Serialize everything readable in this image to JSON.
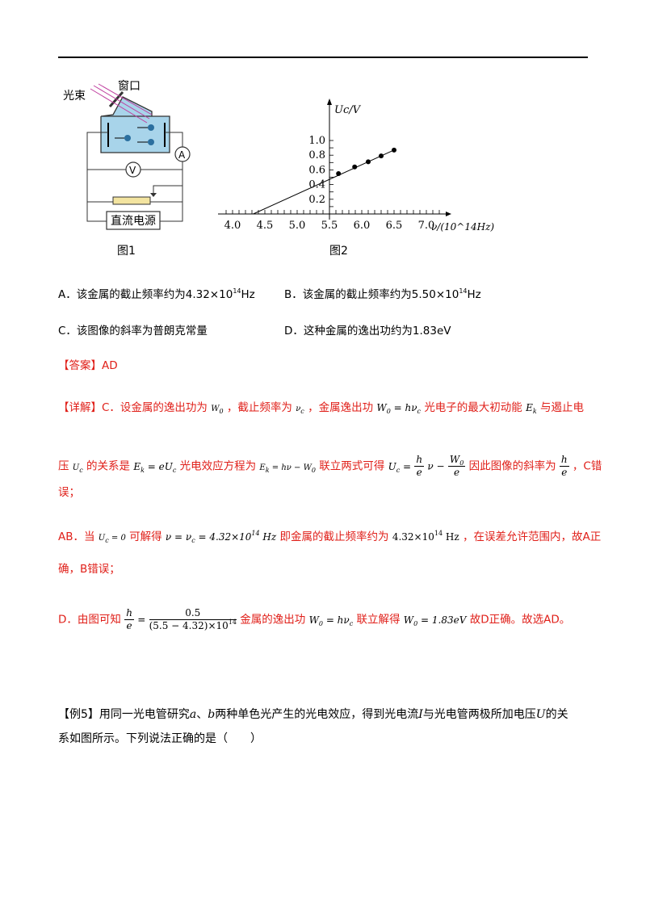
{
  "figure1": {
    "label_light": "光束",
    "label_window": "窗口",
    "label_source": "直流电源",
    "label_ammeter": "A",
    "label_voltmeter": "V",
    "caption": "图1"
  },
  "figure2": {
    "caption": "图2",
    "chart_data": {
      "type": "scatter",
      "ylabel": "Uc/V",
      "xlabel": "ν/(10^14Hz)",
      "x_ticks": [
        "4.0",
        "4.5",
        "5.0",
        "5.5",
        "6.0",
        "6.5",
        "7.0"
      ],
      "y_ticks": [
        "0.2",
        "0.4",
        "0.6",
        "0.8",
        "1.0"
      ],
      "xlim": [
        3.9,
        7.3
      ],
      "ylim": [
        0,
        1.1
      ],
      "points": [
        {
          "x": 5.64,
          "y": 0.55
        },
        {
          "x": 5.89,
          "y": 0.64
        },
        {
          "x": 6.1,
          "y": 0.71
        },
        {
          "x": 6.3,
          "y": 0.79
        },
        {
          "x": 6.5,
          "y": 0.87
        }
      ],
      "fit_line": {
        "x": [
          4.32,
          6.5
        ],
        "y": [
          0,
          0.87
        ]
      }
    }
  },
  "options": {
    "a_prefix": "A．该金属的截止频率约为",
    "a_value": "4.32×10",
    "a_exp": "14",
    "a_unit": "Hz",
    "b_prefix": "B．该金属的截止频率约为",
    "b_value": "5.50×10",
    "b_exp": "14",
    "b_unit": "Hz",
    "c": "C．该图像的斜率为普朗克常量",
    "d": "D．这种金属的逸出功约为1.83eV"
  },
  "answer": "【答案】AD",
  "explanation": {
    "l1_a": "【详解】C．设金属的逸出功为",
    "l1_b": "，截止频率为",
    "l1_c": "，金属逸出功",
    "l1_d": "光电子的最大初动能",
    "l1_e": "与遏止电",
    "l2_a": "压",
    "l2_b": "的关系是",
    "l2_c": "光电效应方程为",
    "l2_d": "联立两式可得",
    "l2_e": "因此图像的斜率为",
    "l2_f": "，C错",
    "l3": "误；",
    "l4_a": "AB．当",
    "l4_b": "可解得",
    "l4_c": "即金属的截止频率约为",
    "l4_d": "，在误差允许范围内，故A正",
    "l5": "确，B错误；",
    "l6_a": "D．由图可知",
    "l6_b": "金属的逸出功",
    "l6_c": "联立解得",
    "l6_d": "故D正确。故选AD。"
  },
  "example5": {
    "line1_a": "【例5】用同一光电管研究",
    "var_a": "a",
    "sep": "、",
    "var_b": "b",
    "line1_b": "两种单色光产生的光电效应，得到光电流",
    "var_i": "I",
    "line1_c": "与光电管两极所加电压",
    "var_u": "U",
    "line1_d": "的关",
    "line2": "系如图所示。下列说法正确的是（　　）"
  }
}
